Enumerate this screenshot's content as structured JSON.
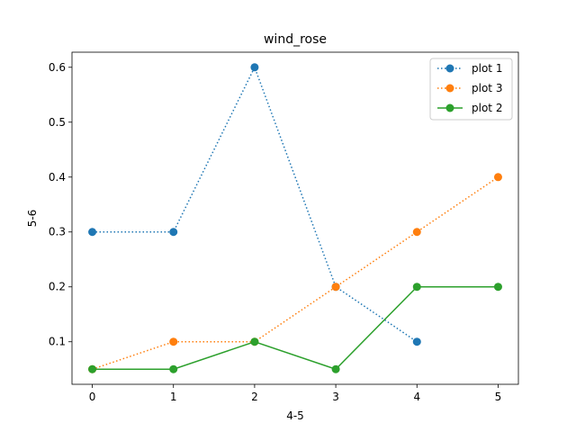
{
  "chart_data": {
    "type": "line",
    "title": "wind_rose",
    "xlabel": "4-5",
    "ylabel": "5-6",
    "xlim": [
      -0.25,
      5.25
    ],
    "ylim": [
      0.0225,
      0.6275
    ],
    "xticks": [
      0,
      1,
      2,
      3,
      4,
      5
    ],
    "yticks": [
      0.1,
      0.2,
      0.3,
      0.4,
      0.5,
      0.6
    ],
    "grid": false,
    "legend_position": "top-right",
    "series": [
      {
        "name": "plot 1",
        "color": "#1f77b4",
        "linestyle": "dotted",
        "marker": "circle",
        "x": [
          0,
          1,
          2,
          3,
          4
        ],
        "y": [
          0.3,
          0.3,
          0.6,
          0.2,
          0.1
        ]
      },
      {
        "name": "plot 3",
        "color": "#ff7f0e",
        "linestyle": "dotted",
        "marker": "circle",
        "x": [
          0,
          1,
          2,
          3,
          4,
          5
        ],
        "y": [
          0.05,
          0.1,
          0.1,
          0.2,
          0.3,
          0.4
        ]
      },
      {
        "name": "plot 2",
        "color": "#2ca02c",
        "linestyle": "solid",
        "marker": "circle",
        "x": [
          0,
          1,
          2,
          3,
          4,
          5
        ],
        "y": [
          0.05,
          0.05,
          0.1,
          0.05,
          0.2,
          0.2
        ]
      }
    ]
  }
}
